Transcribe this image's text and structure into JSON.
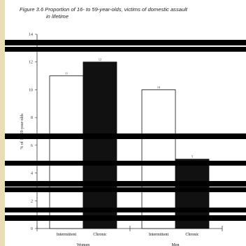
{
  "figure": {
    "title_line1": "Figure 3.6  Proportion of 16- to 59-year-olds, victims of domestic assault",
    "title_line2": "in lifetime"
  },
  "colors": {
    "intermittent": "#ffffff",
    "chronic": "#111111",
    "redaction": "#000000",
    "frame": "#e9ddb5"
  },
  "chart_data": {
    "type": "bar",
    "title": "Proportion of 16- to 59-year-olds, victims of domestic assault in lifetime",
    "ylabel": "% of 16-59-year-olds",
    "ylim": [
      0,
      14
    ],
    "yticks": [
      0,
      2,
      4,
      6,
      8,
      10,
      12,
      14
    ],
    "groups": [
      {
        "name": "Women",
        "bars": [
          {
            "category": "Intermittent",
            "value": 11,
            "label": "11"
          },
          {
            "category": "Chronic",
            "value": 12,
            "label": "12"
          }
        ]
      },
      {
        "name": "Men",
        "bars": [
          {
            "category": "Intermittent",
            "value": 10,
            "label": "10"
          },
          {
            "category": "Chronic",
            "value": 5,
            "label": "5"
          }
        ]
      }
    ],
    "grid": false
  }
}
